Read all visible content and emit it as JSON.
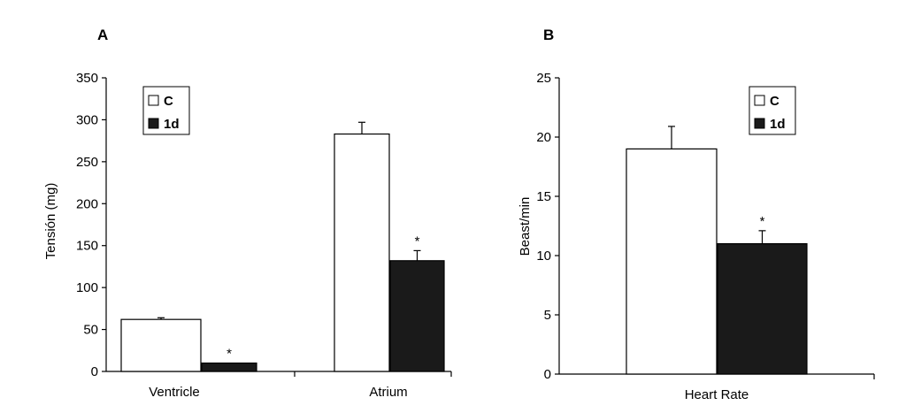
{
  "chart_data": [
    {
      "panel": "A",
      "type": "bar",
      "ylabel": "Tensión (mg)",
      "ylim": [
        0,
        350
      ],
      "yticks": [
        0,
        50,
        100,
        150,
        200,
        250,
        300,
        350
      ],
      "categories": [
        "Ventricle",
        "Atrium"
      ],
      "series": [
        {
          "name": "C",
          "color": "#ffffff",
          "values": [
            62,
            283
          ],
          "errors": [
            2,
            14
          ]
        },
        {
          "name": "1d",
          "color": "#1a1a1a",
          "values": [
            10,
            132
          ],
          "errors": [
            0,
            12
          ]
        }
      ],
      "annotations": [
        {
          "category": 0,
          "series": 1,
          "text": "*"
        },
        {
          "category": 1,
          "series": 1,
          "text": "*"
        }
      ],
      "legend": "top-left"
    },
    {
      "panel": "B",
      "type": "bar",
      "ylabel": "Beast/min",
      "ylim": [
        0,
        25
      ],
      "yticks": [
        0,
        5,
        10,
        15,
        20,
        25
      ],
      "categories": [
        "Heart Rate"
      ],
      "series": [
        {
          "name": "C",
          "color": "#ffffff",
          "values": [
            19
          ],
          "errors": [
            1.9
          ]
        },
        {
          "name": "1d",
          "color": "#1a1a1a",
          "values": [
            11
          ],
          "errors": [
            1.1
          ]
        }
      ],
      "annotations": [
        {
          "category": 0,
          "series": 1,
          "text": "*"
        }
      ],
      "legend": "top-right"
    }
  ]
}
